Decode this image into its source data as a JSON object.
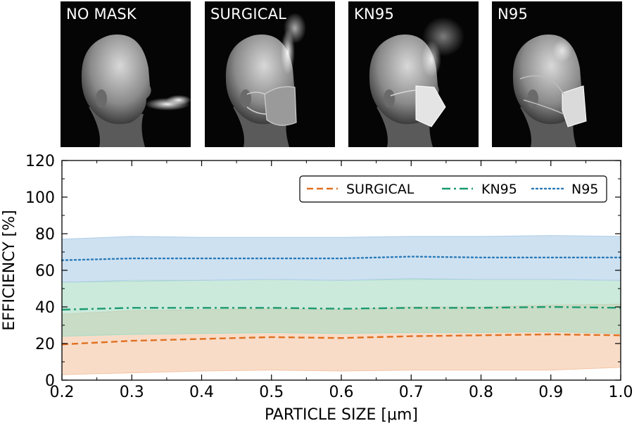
{
  "panels": [
    {
      "label": "NO MASK",
      "mask": "none"
    },
    {
      "label": "SURGICAL",
      "mask": "surgical"
    },
    {
      "label": "KN95",
      "mask": "kn95"
    },
    {
      "label": "N95",
      "mask": "n95"
    }
  ],
  "chart_data": {
    "type": "line",
    "title": "",
    "xlabel": "PARTICLE SIZE [μm]",
    "ylabel": "EFFICIENCY [%]",
    "xlim": [
      0.2,
      1.0
    ],
    "ylim": [
      0,
      120
    ],
    "xticks": [
      "0.2",
      "0.3",
      "0.4",
      "0.5",
      "0.6",
      "0.7",
      "0.8",
      "0.9",
      "1.0"
    ],
    "yticks": [
      "0",
      "20",
      "40",
      "60",
      "80",
      "100",
      "120"
    ],
    "grid": false,
    "legend_position": "top-right",
    "x": [
      0.2,
      0.3,
      0.4,
      0.5,
      0.6,
      0.7,
      0.8,
      0.9,
      1.0
    ],
    "series": [
      {
        "name": "SURGICAL",
        "style": "dashed",
        "color": "#e07020",
        "band_color": "#f4c4a4",
        "values": [
          19.5,
          21.5,
          22.5,
          23.5,
          23,
          24,
          24.5,
          25,
          24.5
        ],
        "lower": [
          3,
          4,
          5,
          5.5,
          5,
          5.5,
          5.5,
          5.5,
          7
        ],
        "upper": [
          36,
          38,
          38.5,
          39,
          38.5,
          40,
          40,
          41,
          41.5
        ]
      },
      {
        "name": "KN95",
        "style": "dashdot",
        "color": "#1a9a70",
        "band_color": "#a8dcc4",
        "values": [
          38.5,
          39.5,
          39.5,
          39.5,
          39,
          39.5,
          39.5,
          40,
          39.5
        ],
        "lower": [
          24,
          25,
          25.5,
          26,
          25.5,
          26,
          26,
          26.5,
          25.5
        ],
        "upper": [
          53.5,
          54,
          54.5,
          55,
          54.5,
          55,
          55,
          55,
          54.5
        ]
      },
      {
        "name": "N95",
        "style": "dotted",
        "color": "#2a7ab8",
        "band_color": "#aecde8",
        "values": [
          65.5,
          66.5,
          66.5,
          66.5,
          66.5,
          67.5,
          67,
          67,
          67
        ],
        "lower": [
          53.5,
          54.5,
          54.5,
          55,
          54.5,
          55.5,
          55,
          55,
          54.5
        ],
        "upper": [
          77,
          78.5,
          78,
          78,
          78,
          78.5,
          78.5,
          79,
          78.5
        ]
      }
    ]
  }
}
